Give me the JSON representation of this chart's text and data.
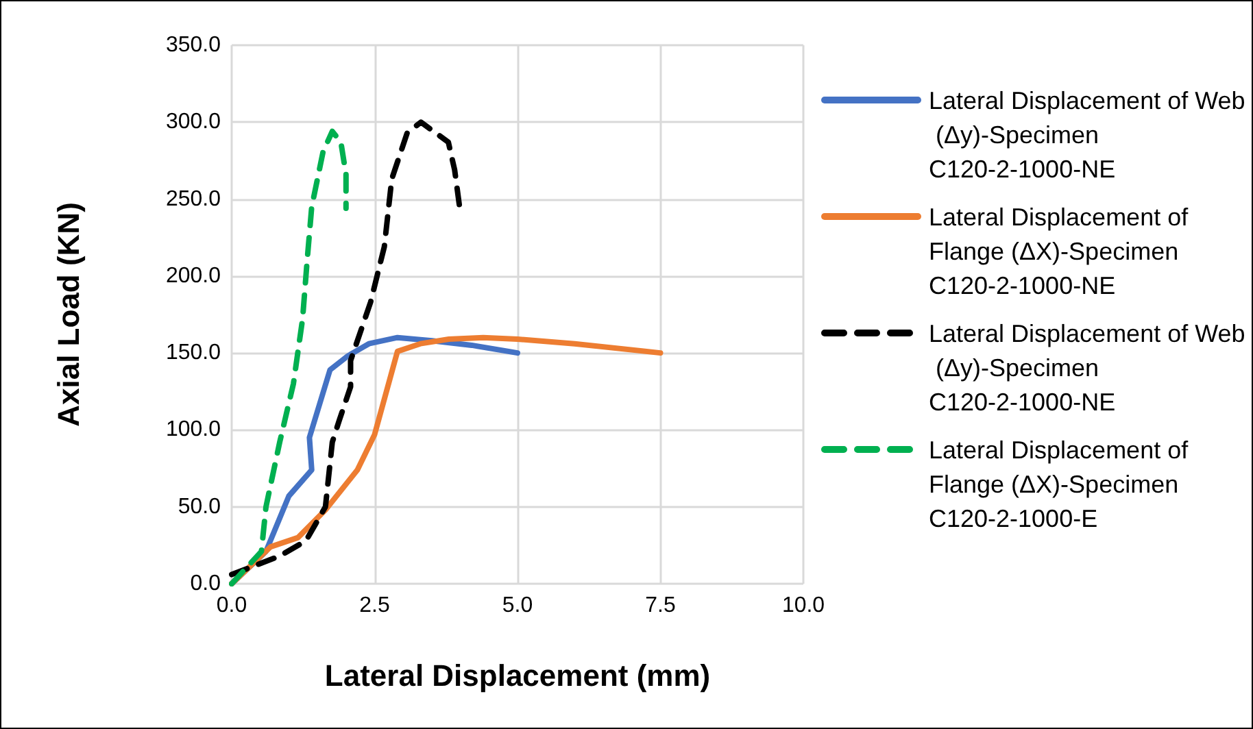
{
  "chart_data": {
    "type": "line",
    "xlabel": "Lateral Displacement (mm)",
    "ylabel": "Axial Load (KN)",
    "xlim": [
      0,
      10
    ],
    "ylim": [
      0,
      350
    ],
    "xticks": [
      {
        "value": 0,
        "label": "0.0"
      },
      {
        "value": 2.5,
        "label": "2.5"
      },
      {
        "value": 5,
        "label": "5.0"
      },
      {
        "value": 7.5,
        "label": "7.5"
      },
      {
        "value": 10,
        "label": "10.0"
      }
    ],
    "yticks": [
      {
        "value": 0,
        "label": "0.0"
      },
      {
        "value": 50,
        "label": "50.0"
      },
      {
        "value": 100,
        "label": "100.0"
      },
      {
        "value": 150,
        "label": "150.0"
      },
      {
        "value": 200,
        "label": "200.0"
      },
      {
        "value": 250,
        "label": "250.0"
      },
      {
        "value": 300,
        "label": "300.0"
      },
      {
        "value": 350,
        "label": "350.0"
      }
    ],
    "grid": true,
    "legend": "right",
    "marker": "none",
    "series": [
      {
        "name": "Lateral Displacement of Web (Δy)-Specimen C120-2-1000-NE",
        "color": "#4472c4",
        "line_style": "solid",
        "x": [
          0,
          0.6,
          1.0,
          1.4,
          1.36,
          1.72,
          2.03,
          2.4,
          2.9,
          3.5,
          4.2,
          5.0
        ],
        "values": [
          0,
          21,
          57,
          74,
          95,
          139,
          148,
          156,
          160,
          158,
          155,
          150
        ]
      },
      {
        "name": "Lateral Displacement of Flange (ΔX)-Specimen C120-2-1000-NE",
        "color": "#ed7d31",
        "line_style": "solid",
        "x": [
          0,
          0.68,
          1.16,
          1.64,
          2.2,
          2.5,
          2.9,
          3.3,
          3.8,
          4.4,
          5.0,
          6.0,
          7.5
        ],
        "values": [
          0,
          24,
          30,
          48,
          74,
          97,
          151,
          156,
          159,
          160,
          159,
          156,
          150
        ]
      },
      {
        "name": "Lateral Displacement of Web (Δy)-Specimen C120-2-1000-NE",
        "color": "#000000",
        "line_style": "dashed",
        "x": [
          0,
          0.84,
          1.3,
          1.64,
          1.76,
          1.88,
          2.08,
          2.08,
          2.43,
          2.67,
          2.8,
          3.07,
          3.31,
          3.79,
          3.9,
          3.99
        ],
        "values": [
          6,
          18,
          28,
          50,
          92,
          106,
          128,
          145,
          183,
          219,
          263,
          293,
          300,
          287,
          269,
          244
        ]
      },
      {
        "name": "Lateral Displacement of Flange (ΔX)-Specimen C120-2-1000-E",
        "color": "#00b050",
        "line_style": "dashed",
        "x": [
          0,
          0.52,
          0.6,
          0.84,
          1.08,
          1.24,
          1.32,
          1.4,
          1.6,
          1.76,
          1.91,
          2.0,
          2.0
        ],
        "values": [
          0,
          21,
          50,
          92,
          130,
          172,
          210,
          245,
          281,
          294,
          287,
          266,
          244
        ]
      }
    ]
  }
}
